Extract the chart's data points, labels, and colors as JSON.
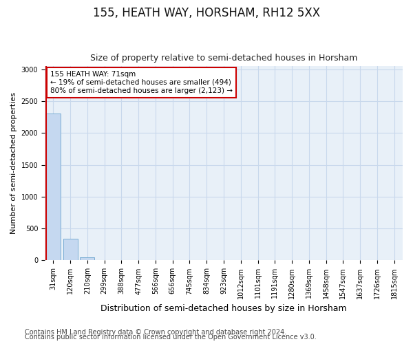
{
  "title": "155, HEATH WAY, HORSHAM, RH12 5XX",
  "subtitle": "Size of property relative to semi-detached houses in Horsham",
  "xlabel": "Distribution of semi-detached houses by size in Horsham",
  "ylabel": "Number of semi-detached properties",
  "annotation_line1": "155 HEATH WAY: 71sqm",
  "annotation_line2": "← 19% of semi-detached houses are smaller (494)",
  "annotation_line3": "80% of semi-detached houses are larger (2,123) →",
  "footer_line1": "Contains HM Land Registry data © Crown copyright and database right 2024.",
  "footer_line2": "Contains public sector information licensed under the Open Government Licence v3.0.",
  "categories": [
    "31sqm",
    "120sqm",
    "210sqm",
    "299sqm",
    "388sqm",
    "477sqm",
    "566sqm",
    "656sqm",
    "745sqm",
    "834sqm",
    "923sqm",
    "1012sqm",
    "1101sqm",
    "1191sqm",
    "1280sqm",
    "1369sqm",
    "1458sqm",
    "1547sqm",
    "1637sqm",
    "1726sqm",
    "1815sqm"
  ],
  "bar_values": [
    2310,
    340,
    50,
    0,
    0,
    0,
    0,
    0,
    0,
    0,
    0,
    0,
    0,
    0,
    0,
    0,
    0,
    0,
    0,
    0,
    0
  ],
  "bar_color": "#c5d8f0",
  "bar_edge_color": "#7aadd4",
  "property_line_color": "#cc0000",
  "ylim": [
    0,
    3050
  ],
  "yticks": [
    0,
    500,
    1000,
    1500,
    2000,
    2500,
    3000
  ],
  "grid_color": "#c8d8ec",
  "bg_color": "#ffffff",
  "plot_bg_color": "#e8f0f8",
  "annotation_box_edge_color": "#cc0000",
  "annotation_box_face_color": "#ffffff",
  "title_fontsize": 12,
  "subtitle_fontsize": 9,
  "ylabel_fontsize": 8,
  "xlabel_fontsize": 9,
  "tick_fontsize": 7,
  "footer_fontsize": 7
}
